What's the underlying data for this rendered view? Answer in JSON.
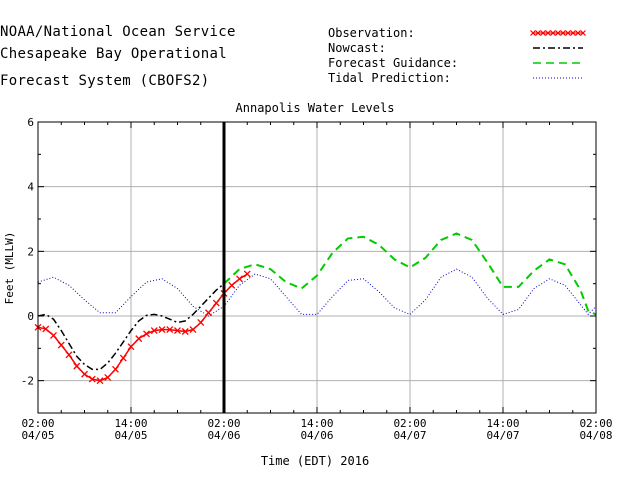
{
  "header": {
    "line1": "NOAA/National Ocean Service",
    "line2": "Chesapeake Bay Operational",
    "line3": "Forecast System (CBOFS2)"
  },
  "legend": [
    {
      "label": "Observation:",
      "style": "red-x",
      "color": "#ff0000"
    },
    {
      "label": "Nowcast:",
      "style": "dash-dot",
      "color": "#000000"
    },
    {
      "label": "Forecast Guidance:",
      "style": "dashed",
      "color": "#00cc00"
    },
    {
      "label": "Tidal Prediction:",
      "style": "dotted",
      "color": "#0000cc"
    }
  ],
  "chart_data": {
    "type": "line",
    "title": "Annapolis Water Levels",
    "xlabel": "Time (EDT) 2016",
    "ylabel": "Feet (MLLW)",
    "ylim": [
      -3,
      6
    ],
    "yticks": [
      -2,
      0,
      2,
      4,
      6
    ],
    "xlim_hours_label": "04/05 02:00 to 04/08 02:00",
    "xticks": [
      {
        "time": "02:00",
        "date": "04/05"
      },
      {
        "time": "14:00",
        "date": "04/05"
      },
      {
        "time": "02:00",
        "date": "04/06"
      },
      {
        "time": "14:00",
        "date": "04/06"
      },
      {
        "time": "02:00",
        "date": "04/07"
      },
      {
        "time": "14:00",
        "date": "04/07"
      },
      {
        "time": "02:00",
        "date": "04/08"
      }
    ],
    "grid": true,
    "nowcast_cutoff": "04/06 02:00",
    "series": [
      {
        "name": "Observation:",
        "color": "#ff0000",
        "points": [
          [
            "04/05 02:00",
            -0.35
          ],
          [
            "04/05 03:00",
            -0.4
          ],
          [
            "04/05 04:00",
            -0.6
          ],
          [
            "04/05 05:00",
            -0.9
          ],
          [
            "04/05 06:00",
            -1.2
          ],
          [
            "04/05 07:00",
            -1.55
          ],
          [
            "04/05 08:00",
            -1.8
          ],
          [
            "04/05 09:00",
            -1.95
          ],
          [
            "04/05 10:00",
            -2.0
          ],
          [
            "04/05 11:00",
            -1.9
          ],
          [
            "04/05 12:00",
            -1.65
          ],
          [
            "04/05 13:00",
            -1.3
          ],
          [
            "04/05 14:00",
            -0.95
          ],
          [
            "04/05 15:00",
            -0.7
          ],
          [
            "04/05 16:00",
            -0.55
          ],
          [
            "04/05 17:00",
            -0.45
          ],
          [
            "04/05 18:00",
            -0.42
          ],
          [
            "04/05 19:00",
            -0.42
          ],
          [
            "04/05 20:00",
            -0.45
          ],
          [
            "04/05 21:00",
            -0.48
          ],
          [
            "04/05 22:00",
            -0.42
          ],
          [
            "04/05 23:00",
            -0.2
          ],
          [
            "04/06 00:00",
            0.1
          ],
          [
            "04/06 01:00",
            0.4
          ],
          [
            "04/06 02:00",
            0.7
          ],
          [
            "04/06 03:00",
            0.95
          ],
          [
            "04/06 04:00",
            1.15
          ],
          [
            "04/06 05:00",
            1.3
          ]
        ]
      },
      {
        "name": "Nowcast:",
        "color": "#000000",
        "points": [
          [
            "04/05 02:00",
            0.0
          ],
          [
            "04/05 03:00",
            0.05
          ],
          [
            "04/05 04:00",
            -0.1
          ],
          [
            "04/05 05:00",
            -0.45
          ],
          [
            "04/05 06:00",
            -0.85
          ],
          [
            "04/05 07:00",
            -1.25
          ],
          [
            "04/05 08:00",
            -1.5
          ],
          [
            "04/05 09:00",
            -1.65
          ],
          [
            "04/05 10:00",
            -1.65
          ],
          [
            "04/05 11:00",
            -1.45
          ],
          [
            "04/05 12:00",
            -1.15
          ],
          [
            "04/05 13:00",
            -0.8
          ],
          [
            "04/05 14:00",
            -0.45
          ],
          [
            "04/05 15:00",
            -0.15
          ],
          [
            "04/05 16:00",
            0.02
          ],
          [
            "04/05 17:00",
            0.05
          ],
          [
            "04/05 18:00",
            0.0
          ],
          [
            "04/05 19:00",
            -0.1
          ],
          [
            "04/05 20:00",
            -0.2
          ],
          [
            "04/05 21:00",
            -0.15
          ],
          [
            "04/05 22:00",
            0.05
          ],
          [
            "04/05 23:00",
            0.3
          ],
          [
            "04/06 00:00",
            0.55
          ],
          [
            "04/06 01:00",
            0.8
          ],
          [
            "04/06 02:00",
            1.0
          ]
        ]
      },
      {
        "name": "Forecast Guidance:",
        "color": "#00cc00",
        "points": [
          [
            "04/06 02:00",
            1.0
          ],
          [
            "04/06 04:00",
            1.45
          ],
          [
            "04/06 06:00",
            1.6
          ],
          [
            "04/06 08:00",
            1.45
          ],
          [
            "04/06 10:00",
            1.05
          ],
          [
            "04/06 12:00",
            0.85
          ],
          [
            "04/06 14:00",
            1.25
          ],
          [
            "04/06 16:00",
            1.95
          ],
          [
            "04/06 18:00",
            2.4
          ],
          [
            "04/06 20:00",
            2.45
          ],
          [
            "04/06 22:00",
            2.2
          ],
          [
            "04/07 00:00",
            1.75
          ],
          [
            "04/07 02:00",
            1.5
          ],
          [
            "04/07 04:00",
            1.8
          ],
          [
            "04/07 06:00",
            2.35
          ],
          [
            "04/07 08:00",
            2.55
          ],
          [
            "04/07 10:00",
            2.35
          ],
          [
            "04/07 12:00",
            1.65
          ],
          [
            "04/07 14:00",
            0.9
          ],
          [
            "04/07 16:00",
            0.9
          ],
          [
            "04/07 18:00",
            1.4
          ],
          [
            "04/07 20:00",
            1.75
          ],
          [
            "04/07 22:00",
            1.6
          ],
          [
            "04/08 00:00",
            0.8
          ],
          [
            "04/08 01:00",
            0.15
          ],
          [
            "04/08 02:00",
            0.05
          ]
        ]
      },
      {
        "name": "Tidal Prediction:",
        "color": "#0000cc",
        "points": [
          [
            "04/05 02:00",
            1.05
          ],
          [
            "04/05 04:00",
            1.2
          ],
          [
            "04/05 06:00",
            0.95
          ],
          [
            "04/05 08:00",
            0.5
          ],
          [
            "04/05 10:00",
            0.1
          ],
          [
            "04/05 12:00",
            0.1
          ],
          [
            "04/05 14:00",
            0.6
          ],
          [
            "04/05 16:00",
            1.05
          ],
          [
            "04/05 18:00",
            1.15
          ],
          [
            "04/05 20:00",
            0.85
          ],
          [
            "04/05 22:00",
            0.3
          ],
          [
            "04/06 00:00",
            0.0
          ],
          [
            "04/06 02:00",
            0.3
          ],
          [
            "04/06 04:00",
            0.95
          ],
          [
            "04/06 06:00",
            1.3
          ],
          [
            "04/06 08:00",
            1.15
          ],
          [
            "04/06 10:00",
            0.6
          ],
          [
            "04/06 12:00",
            0.05
          ],
          [
            "04/06 14:00",
            0.05
          ],
          [
            "04/06 16:00",
            0.6
          ],
          [
            "04/06 18:00",
            1.1
          ],
          [
            "04/06 20:00",
            1.15
          ],
          [
            "04/06 22:00",
            0.75
          ],
          [
            "04/07 00:00",
            0.25
          ],
          [
            "04/07 02:00",
            0.05
          ],
          [
            "04/07 04:00",
            0.5
          ],
          [
            "04/07 06:00",
            1.2
          ],
          [
            "04/07 08:00",
            1.45
          ],
          [
            "04/07 10:00",
            1.2
          ],
          [
            "04/07 12:00",
            0.55
          ],
          [
            "04/07 14:00",
            0.05
          ],
          [
            "04/07 16:00",
            0.2
          ],
          [
            "04/07 18:00",
            0.85
          ],
          [
            "04/07 20:00",
            1.15
          ],
          [
            "04/07 22:00",
            0.95
          ],
          [
            "04/08 00:00",
            0.35
          ],
          [
            "04/08 01:00",
            0.05
          ],
          [
            "04/08 02:00",
            0.3
          ]
        ]
      }
    ]
  }
}
